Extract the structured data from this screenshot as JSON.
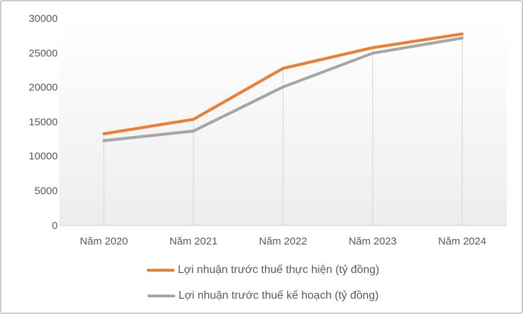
{
  "chart_data": {
    "type": "line",
    "title": "",
    "xlabel": "",
    "ylabel": "",
    "categories": [
      "Năm 2020",
      "Năm 2021",
      "Năm 2022",
      "Năm 2023",
      "Năm 2024"
    ],
    "series": [
      {
        "name": "Lợi nhuận trước thuế thực hiện (tỷ đồng)",
        "color": "#ED7D31",
        "values": [
          13300,
          15400,
          22800,
          25800,
          27800
        ]
      },
      {
        "name": "Lợi nhuận trước thuế kế hoạch (tỷ đồng)",
        "color": "#A6A6A6",
        "values": [
          12300,
          13700,
          20100,
          25000,
          27200
        ]
      }
    ],
    "ylim": [
      0,
      30000
    ],
    "ytick_step": 5000,
    "ytick_labels": [
      "0",
      "5000",
      "10000",
      "15000",
      "20000",
      "25000",
      "30000"
    ],
    "grid": "vertical drop lines at each category only, no horizontal gridlines",
    "legend_position": "bottom"
  },
  "style": {
    "axis_line_color": "#D9D9D9",
    "drop_line_color": "#D9D9D9",
    "tick_text_color": "#595959",
    "legend_text_color": "#595959",
    "plot_bg_top": "#FFFFFF",
    "plot_bg_bottom": "#EDEDED",
    "frame_border_color": "#C9CDD0"
  }
}
